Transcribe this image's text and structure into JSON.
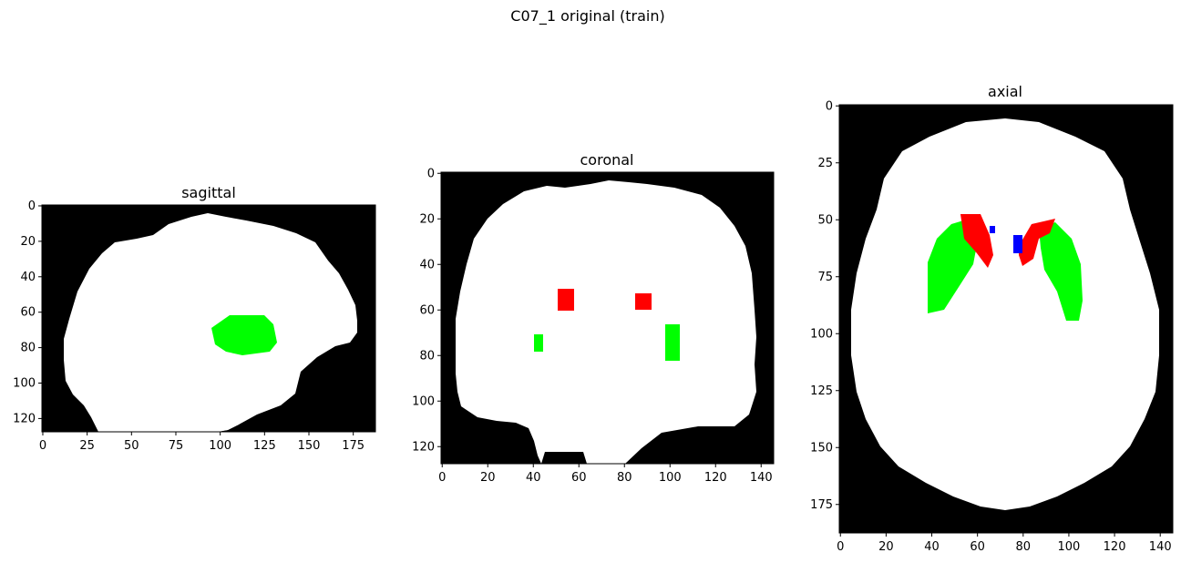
{
  "figure": {
    "title": "C07_1 original (train)"
  },
  "colors": {
    "background": "#000000",
    "brain_mask": "#ffffff",
    "label_green": "#00ff00",
    "label_red": "#ff0000",
    "label_blue": "#0000ff"
  },
  "panels": [
    {
      "id": "sagittal",
      "title": "sagittal",
      "image_size": [
        188,
        128
      ],
      "x_ticks": [
        "0",
        "25",
        "50",
        "75",
        "100",
        "125",
        "150",
        "175"
      ],
      "y_ticks": [
        "0",
        "20",
        "40",
        "60",
        "80",
        "100",
        "120"
      ]
    },
    {
      "id": "coronal",
      "title": "coronal",
      "image_size": [
        146,
        128
      ],
      "x_ticks": [
        "0",
        "20",
        "40",
        "60",
        "80",
        "100",
        "120",
        "140"
      ],
      "y_ticks": [
        "0",
        "20",
        "40",
        "60",
        "80",
        "100",
        "120"
      ]
    },
    {
      "id": "axial",
      "title": "axial",
      "image_size": [
        146,
        188
      ],
      "x_ticks": [
        "0",
        "20",
        "40",
        "60",
        "80",
        "100",
        "120",
        "140"
      ],
      "y_ticks": [
        "0",
        "25",
        "50",
        "75",
        "100",
        "125",
        "150",
        "175"
      ]
    }
  ]
}
